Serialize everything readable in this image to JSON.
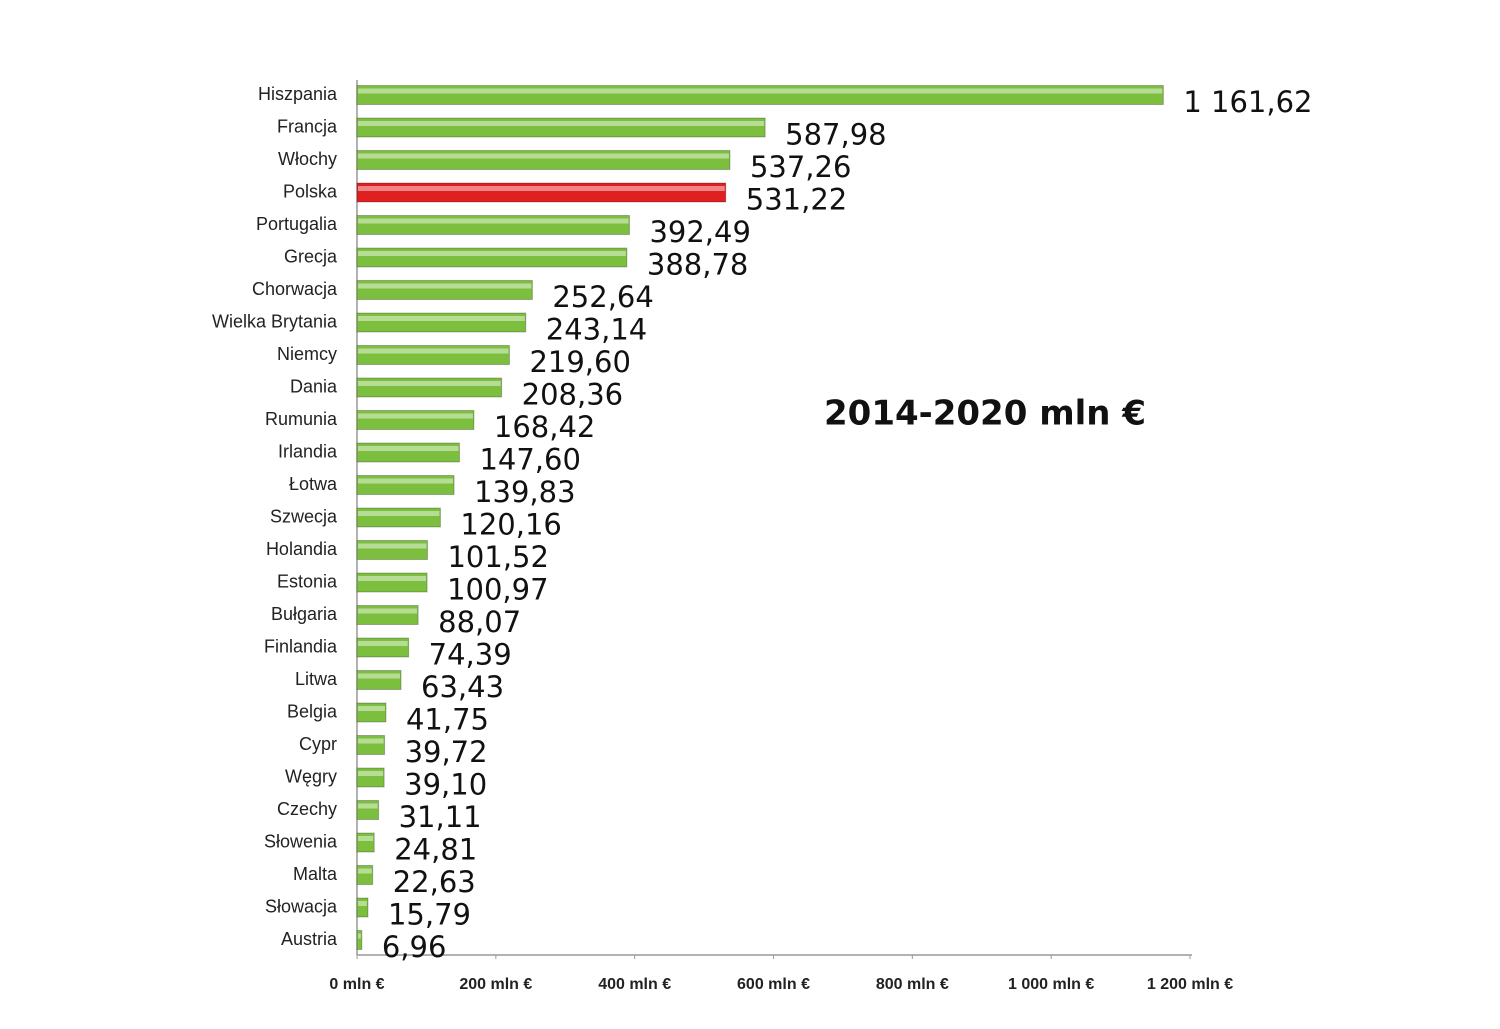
{
  "chart_data": {
    "type": "hbar",
    "annotation": "2014-2020 mln €",
    "categories": [
      "Hiszpania",
      "Francja",
      "Włochy",
      "Polska",
      "Portugalia",
      "Grecja",
      "Chorwacja",
      "Wielka Brytania",
      "Niemcy",
      "Dania",
      "Rumunia",
      "Irlandia",
      "Łotwa",
      "Szwecja",
      "Holandia",
      "Estonia",
      "Bułgaria",
      "Finlandia",
      "Litwa",
      "Belgia",
      "Cypr",
      "Węgry",
      "Czechy",
      "Słowenia",
      "Malta",
      "Słowacja",
      "Austria"
    ],
    "values": [
      1161.62,
      587.98,
      537.26,
      531.22,
      392.49,
      388.78,
      252.64,
      243.14,
      219.6,
      208.36,
      168.42,
      147.6,
      139.83,
      120.16,
      101.52,
      100.97,
      88.07,
      74.39,
      63.43,
      41.75,
      39.72,
      39.1,
      31.11,
      24.81,
      22.63,
      15.79,
      6.96
    ],
    "value_labels": [
      "1 161,62",
      "587,98",
      "537,26",
      "531,22",
      "392,49",
      "388,78",
      "252,64",
      "243,14",
      "219,60",
      "208,36",
      "168,42",
      "147,60",
      "139,83",
      "120,16",
      "101,52",
      "100,97",
      "88,07",
      "74,39",
      "63,43",
      "41,75",
      "39,72",
      "39,10",
      "31,11",
      "24,81",
      "22,63",
      "15,79",
      "6,96"
    ],
    "colors": [
      "#7cbf3f",
      "#7cbf3f",
      "#7cbf3f",
      "#e02020",
      "#7cbf3f",
      "#7cbf3f",
      "#7cbf3f",
      "#7cbf3f",
      "#7cbf3f",
      "#7cbf3f",
      "#7cbf3f",
      "#7cbf3f",
      "#7cbf3f",
      "#7cbf3f",
      "#7cbf3f",
      "#7cbf3f",
      "#7cbf3f",
      "#7cbf3f",
      "#7cbf3f",
      "#7cbf3f",
      "#7cbf3f",
      "#7cbf3f",
      "#7cbf3f",
      "#7cbf3f",
      "#7cbf3f",
      "#7cbf3f",
      "#7cbf3f"
    ],
    "xlim": [
      0,
      1200
    ],
    "xticks": [
      {
        "value": 0,
        "label": "0 mln €"
      },
      {
        "value": 200,
        "label": "200 mln €"
      },
      {
        "value": 400,
        "label": "400 mln €"
      },
      {
        "value": 600,
        "label": "600 mln €"
      },
      {
        "value": 800,
        "label": "800 mln €"
      },
      {
        "value": 1000,
        "label": "1 000 mln €"
      },
      {
        "value": 1200,
        "label": "1 200 mln €"
      }
    ],
    "grid": false
  }
}
